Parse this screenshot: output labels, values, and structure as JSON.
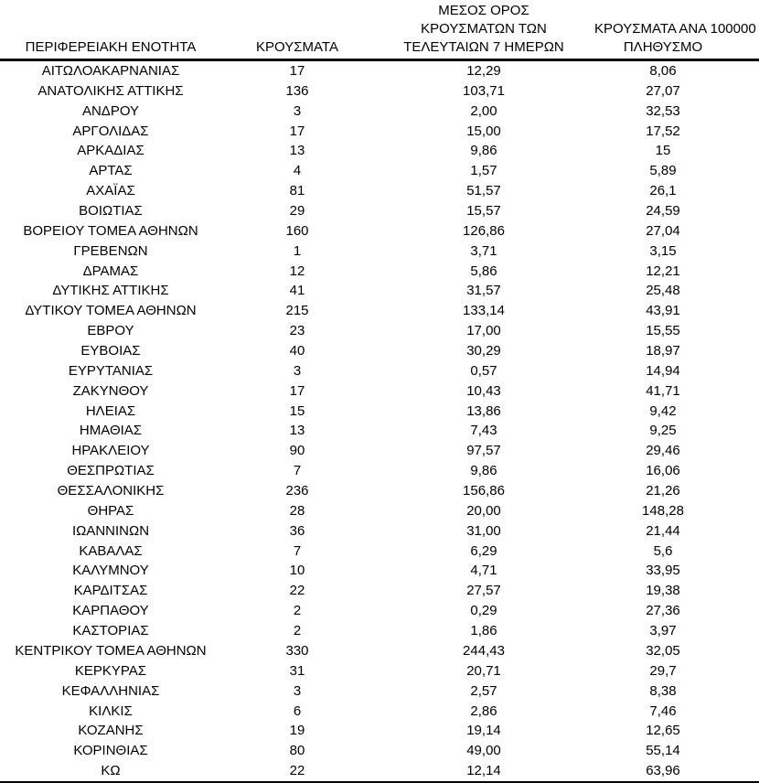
{
  "chart_data": {
    "type": "table",
    "title": "",
    "decimal_separator": ",",
    "text_color": "#000000",
    "border_color": "#000000",
    "columns": [
      "ΠΕΡΙΦΕΡΕΙΑΚΗ ΕΝΟΤΗΤΑ",
      "ΚΡΟΥΣΜΑΤΑ",
      "ΜΕΣΟΣ ΟΡΟΣ ΚΡΟΥΣΜΑΤΩΝ ΤΩΝ ΤΕΛΕΥΤΑΙΩΝ 7 ΗΜΕΡΩΝ",
      "ΚΡΟΥΣΜΑΤΑ ΑΝΑ 100000 ΠΛΗΘΥΣΜΟ"
    ],
    "header_display": [
      "ΠΕΡΙΦΕΡΕΙΑΚΗ ΕΝΟΤΗΤΑ",
      "ΚΡΟΥΣΜΑΤΑ",
      "ΜΕΣΟΣ ΟΡΟΣ\nΚΡΟΥΣΜΑΤΩΝ ΤΩΝ\nΤΕΛΕΥΤΑΙΩΝ 7 ΗΜΕΡΩΝ",
      "ΚΡΟΥΣΜΑΤΑ ΑΝΑ 100000\nΠΛΗΘΥΣΜΟ"
    ],
    "rows": [
      {
        "region": "ΑΙΤΩΛΟΑΚΑΡΝΑΝΙΑΣ",
        "cases": "17",
        "avg_7day": "12,29",
        "per_100k": "8,06"
      },
      {
        "region": "ΑΝΑΤΟΛΙΚΗΣ ΑΤΤΙΚΗΣ",
        "cases": "136",
        "avg_7day": "103,71",
        "per_100k": "27,07"
      },
      {
        "region": "ΑΝΔΡΟΥ",
        "cases": "3",
        "avg_7day": "2,00",
        "per_100k": "32,53"
      },
      {
        "region": "ΑΡΓΟΛΙΔΑΣ",
        "cases": "17",
        "avg_7day": "15,00",
        "per_100k": "17,52"
      },
      {
        "region": "ΑΡΚΑΔΙΑΣ",
        "cases": "13",
        "avg_7day": "9,86",
        "per_100k": "15"
      },
      {
        "region": "ΑΡΤΑΣ",
        "cases": "4",
        "avg_7day": "1,57",
        "per_100k": "5,89"
      },
      {
        "region": "ΑΧΑΪΑΣ",
        "cases": "81",
        "avg_7day": "51,57",
        "per_100k": "26,1"
      },
      {
        "region": "ΒΟΙΩΤΙΑΣ",
        "cases": "29",
        "avg_7day": "15,57",
        "per_100k": "24,59"
      },
      {
        "region": "ΒΟΡΕΙΟΥ ΤΟΜΕΑ ΑΘΗΝΩΝ",
        "cases": "160",
        "avg_7day": "126,86",
        "per_100k": "27,04"
      },
      {
        "region": "ΓΡΕΒΕΝΩΝ",
        "cases": "1",
        "avg_7day": "3,71",
        "per_100k": "3,15"
      },
      {
        "region": "ΔΡΑΜΑΣ",
        "cases": "12",
        "avg_7day": "5,86",
        "per_100k": "12,21"
      },
      {
        "region": "ΔΥΤΙΚΗΣ ΑΤΤΙΚΗΣ",
        "cases": "41",
        "avg_7day": "31,57",
        "per_100k": "25,48"
      },
      {
        "region": "ΔΥΤΙΚΟΥ ΤΟΜΕΑ ΑΘΗΝΩΝ",
        "cases": "215",
        "avg_7day": "133,14",
        "per_100k": "43,91"
      },
      {
        "region": "ΕΒΡΟΥ",
        "cases": "23",
        "avg_7day": "17,00",
        "per_100k": "15,55"
      },
      {
        "region": "ΕΥΒΟΙΑΣ",
        "cases": "40",
        "avg_7day": "30,29",
        "per_100k": "18,97"
      },
      {
        "region": "ΕΥΡΥΤΑΝΙΑΣ",
        "cases": "3",
        "avg_7day": "0,57",
        "per_100k": "14,94"
      },
      {
        "region": "ΖΑΚΥΝΘΟΥ",
        "cases": "17",
        "avg_7day": "10,43",
        "per_100k": "41,71"
      },
      {
        "region": "ΗΛΕΙΑΣ",
        "cases": "15",
        "avg_7day": "13,86",
        "per_100k": "9,42"
      },
      {
        "region": "ΗΜΑΘΙΑΣ",
        "cases": "13",
        "avg_7day": "7,43",
        "per_100k": "9,25"
      },
      {
        "region": "ΗΡΑΚΛΕΙΟΥ",
        "cases": "90",
        "avg_7day": "97,57",
        "per_100k": "29,46"
      },
      {
        "region": "ΘΕΣΠΡΩΤΙΑΣ",
        "cases": "7",
        "avg_7day": "9,86",
        "per_100k": "16,06"
      },
      {
        "region": "ΘΕΣΣΑΛΟΝΙΚΗΣ",
        "cases": "236",
        "avg_7day": "156,86",
        "per_100k": "21,26"
      },
      {
        "region": "ΘΗΡΑΣ",
        "cases": "28",
        "avg_7day": "20,00",
        "per_100k": "148,28"
      },
      {
        "region": "ΙΩΑΝΝΙΝΩΝ",
        "cases": "36",
        "avg_7day": "31,00",
        "per_100k": "21,44"
      },
      {
        "region": "ΚΑΒΑΛΑΣ",
        "cases": "7",
        "avg_7day": "6,29",
        "per_100k": "5,6"
      },
      {
        "region": "ΚΑΛΥΜΝΟΥ",
        "cases": "10",
        "avg_7day": "4,71",
        "per_100k": "33,95"
      },
      {
        "region": "ΚΑΡΔΙΤΣΑΣ",
        "cases": "22",
        "avg_7day": "27,57",
        "per_100k": "19,38"
      },
      {
        "region": "ΚΑΡΠΑΘΟΥ",
        "cases": "2",
        "avg_7day": "0,29",
        "per_100k": "27,36"
      },
      {
        "region": "ΚΑΣΤΟΡΙΑΣ",
        "cases": "2",
        "avg_7day": "1,86",
        "per_100k": "3,97"
      },
      {
        "region": "ΚΕΝΤΡΙΚΟΥ ΤΟΜΕΑ ΑΘΗΝΩΝ",
        "cases": "330",
        "avg_7day": "244,43",
        "per_100k": "32,05"
      },
      {
        "region": "ΚΕΡΚΥΡΑΣ",
        "cases": "31",
        "avg_7day": "20,71",
        "per_100k": "29,7"
      },
      {
        "region": "ΚΕΦΑΛΛΗΝΙΑΣ",
        "cases": "3",
        "avg_7day": "2,57",
        "per_100k": "8,38"
      },
      {
        "region": "ΚΙΛΚΙΣ",
        "cases": "6",
        "avg_7day": "2,86",
        "per_100k": "7,46"
      },
      {
        "region": "ΚΟΖΑΝΗΣ",
        "cases": "19",
        "avg_7day": "19,14",
        "per_100k": "12,65"
      },
      {
        "region": "ΚΟΡΙΝΘΙΑΣ",
        "cases": "80",
        "avg_7day": "49,00",
        "per_100k": "55,14"
      },
      {
        "region": "ΚΩ",
        "cases": "22",
        "avg_7day": "12,14",
        "per_100k": "63,96"
      }
    ]
  }
}
